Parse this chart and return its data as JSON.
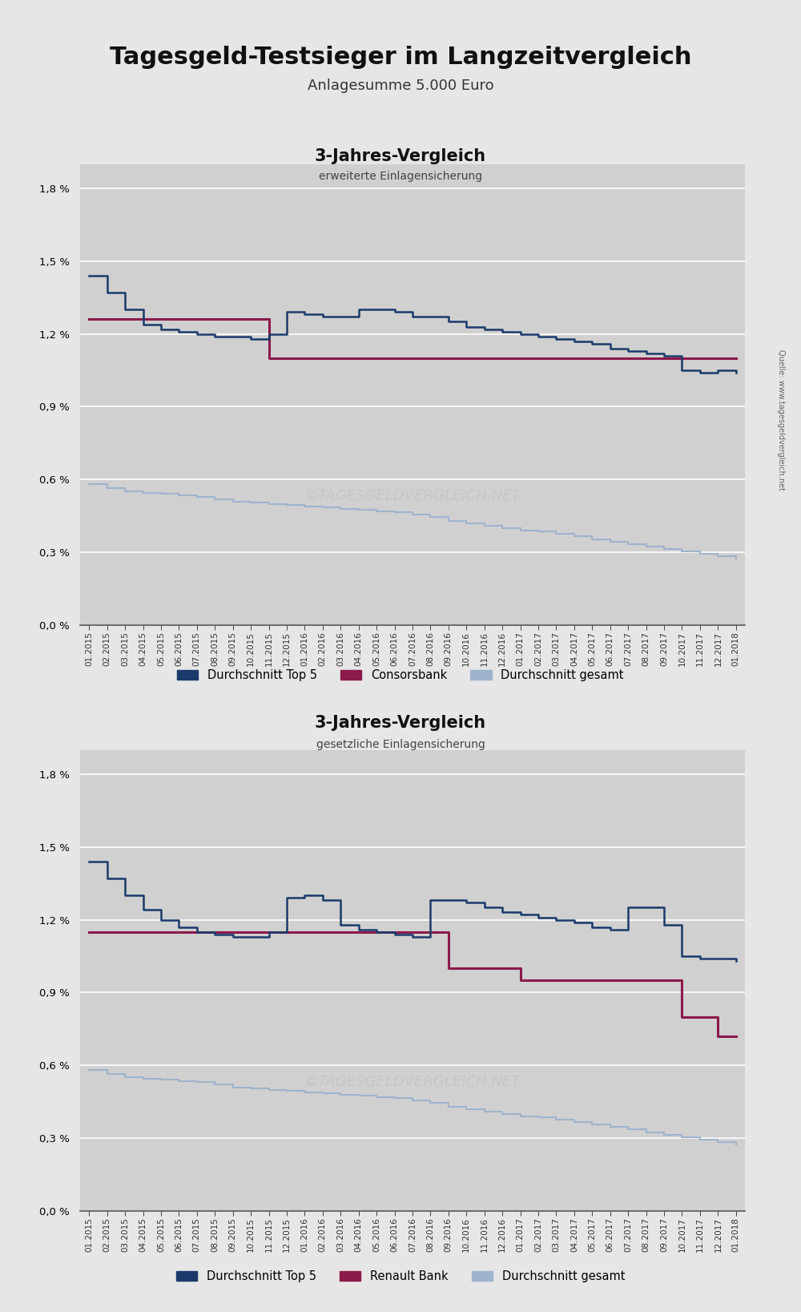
{
  "title": "Tagesgeld-Testsieger im Langzeitvergleich",
  "subtitle": "Anlagesumme 5.000 Euro",
  "background_color": "#e6e6e6",
  "plot_bg_color": "#d0d0d0",
  "chart1_title": "3-Jahres-Vergleich",
  "chart1_subtitle": "erweiterte Einlagensicherung",
  "chart2_title": "3-Jahres-Vergleich",
  "chart2_subtitle": "gesetzliche Einlagensicherung",
  "legend1": [
    "Durchschnitt Top 5",
    "Consorsbank",
    "Durchschnitt gesamt"
  ],
  "legend2": [
    "Durchschnitt Top 5",
    "Renault Bank",
    "Durchschnitt gesamt"
  ],
  "color_top5": "#1a3a6b",
  "color_bank1": "#8B1A4A",
  "color_avg": "#9eb3cc",
  "ylim": [
    0.0,
    1.9
  ],
  "yticks": [
    0.0,
    0.3,
    0.6,
    0.9,
    1.2,
    1.5,
    1.8
  ],
  "watermark": "©TAGESGELDVERGLEICH.NET",
  "source_text": "Quelle: www.tagesgeldvergleich.net",
  "x_labels": [
    "01.2015",
    "02.2015",
    "03.2015",
    "04.2015",
    "05.2015",
    "06.2015",
    "07.2015",
    "08.2015",
    "09.2015",
    "10.2015",
    "11.2015",
    "12.2015",
    "01.2016",
    "02.2016",
    "03.2016",
    "04.2016",
    "05.2016",
    "06.2016",
    "07.2016",
    "08.2016",
    "09.2016",
    "10.2016",
    "11.2016",
    "12.2016",
    "01.2017",
    "02.2017",
    "03.2017",
    "04.2017",
    "05.2017",
    "06.2017",
    "07.2017",
    "08.2017",
    "09.2017",
    "10.2017",
    "11.2017",
    "12.2017",
    "01.2018"
  ],
  "top5_chart1": [
    1.44,
    1.37,
    1.3,
    1.24,
    1.22,
    1.21,
    1.2,
    1.19,
    1.19,
    1.18,
    1.2,
    1.29,
    1.28,
    1.27,
    1.27,
    1.3,
    1.3,
    1.29,
    1.27,
    1.27,
    1.25,
    1.23,
    1.22,
    1.21,
    1.2,
    1.19,
    1.18,
    1.17,
    1.16,
    1.14,
    1.13,
    1.12,
    1.11,
    1.05,
    1.04,
    1.05,
    1.04
  ],
  "consorsbank": [
    1.26,
    1.26,
    1.26,
    1.26,
    1.26,
    1.26,
    1.26,
    1.26,
    1.26,
    1.26,
    1.1,
    1.1,
    1.1,
    1.1,
    1.1,
    1.1,
    1.1,
    1.1,
    1.1,
    1.1,
    1.1,
    1.1,
    1.1,
    1.1,
    1.1,
    1.1,
    1.1,
    1.1,
    1.1,
    1.1,
    1.1,
    1.1,
    1.1,
    1.1,
    1.1,
    1.1,
    1.1
  ],
  "avg_chart1": [
    0.58,
    0.565,
    0.55,
    0.545,
    0.54,
    0.535,
    0.53,
    0.52,
    0.51,
    0.505,
    0.5,
    0.495,
    0.49,
    0.485,
    0.48,
    0.475,
    0.47,
    0.465,
    0.455,
    0.445,
    0.43,
    0.42,
    0.41,
    0.4,
    0.39,
    0.385,
    0.375,
    0.365,
    0.355,
    0.345,
    0.335,
    0.325,
    0.315,
    0.305,
    0.295,
    0.285,
    0.275
  ],
  "top5_chart2": [
    1.44,
    1.37,
    1.3,
    1.24,
    1.2,
    1.17,
    1.15,
    1.14,
    1.13,
    1.13,
    1.15,
    1.29,
    1.3,
    1.28,
    1.18,
    1.16,
    1.15,
    1.14,
    1.13,
    1.28,
    1.28,
    1.27,
    1.25,
    1.23,
    1.22,
    1.21,
    1.2,
    1.19,
    1.17,
    1.16,
    1.25,
    1.25,
    1.18,
    1.05,
    1.04,
    1.04,
    1.03
  ],
  "renaultbank": [
    1.15,
    1.15,
    1.15,
    1.15,
    1.15,
    1.15,
    1.15,
    1.15,
    1.15,
    1.15,
    1.15,
    1.15,
    1.15,
    1.15,
    1.15,
    1.15,
    1.15,
    1.15,
    1.15,
    1.15,
    1.0,
    1.0,
    1.0,
    1.0,
    0.95,
    0.95,
    0.95,
    0.95,
    0.95,
    0.95,
    0.95,
    0.95,
    0.95,
    0.8,
    0.8,
    0.72,
    0.72
  ],
  "avg_chart2": [
    0.58,
    0.565,
    0.55,
    0.545,
    0.54,
    0.535,
    0.53,
    0.52,
    0.51,
    0.505,
    0.5,
    0.495,
    0.49,
    0.485,
    0.48,
    0.475,
    0.47,
    0.465,
    0.455,
    0.445,
    0.43,
    0.42,
    0.41,
    0.4,
    0.39,
    0.385,
    0.375,
    0.365,
    0.355,
    0.345,
    0.335,
    0.325,
    0.315,
    0.305,
    0.295,
    0.285,
    0.275
  ]
}
